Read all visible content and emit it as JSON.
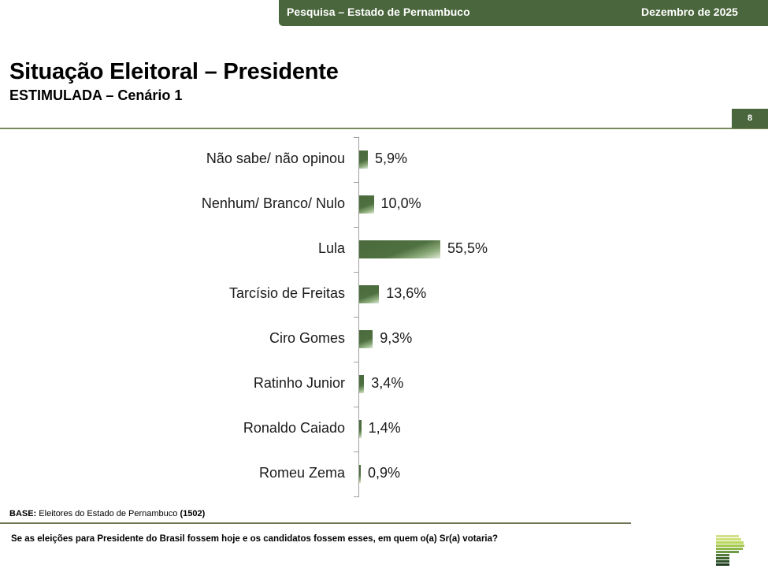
{
  "header": {
    "banner_left": "Pesquisa – Estado de Pernambuco",
    "banner_right": "Dezembro de 2025",
    "title": "Situação Eleitoral – Presidente",
    "subtitle": "ESTIMULADA – Cenário 1",
    "page_number": "8",
    "brand_color": "#4a663c"
  },
  "chart_data": {
    "type": "bar",
    "orientation": "horizontal",
    "title": "Situação Eleitoral – Presidente",
    "subtitle": "ESTIMULADA – Cenário 1",
    "categories": [
      "Não sabe/ não opinou",
      "Nenhum/ Branco/ Nulo",
      "Lula",
      "Tarcísio de Freitas",
      "Ciro Gomes",
      "Ratinho Junior",
      "Ronaldo Caiado",
      "Romeu Zema"
    ],
    "values": [
      5.9,
      10.0,
      55.5,
      13.6,
      9.3,
      3.4,
      1.4,
      0.9
    ],
    "value_labels": [
      "5,9%",
      "10,0%",
      "55,5%",
      "13,6%",
      "9,3%",
      "3,4%",
      "1,4%",
      "0,9%"
    ],
    "xlabel": "",
    "ylabel": "",
    "xlim": [
      0,
      100
    ],
    "grid": false,
    "legend": "none",
    "bar_color": "#4a6a3d"
  },
  "footer": {
    "base_label": "BASE:",
    "base_text": " Eleitores do Estado de Pernambuco ",
    "base_count": "(1502)",
    "question": "Se as eleições para Presidente do Brasil fossem hoje e os candidatos fossem esses, em quem o(a) Sr(a) votaria?"
  },
  "logo": {
    "icon": "stacked-bars-p-logo",
    "stripe_colors": [
      "#d4e08a",
      "#cde07a",
      "#b9d65c",
      "#a6c84e",
      "#8fb649",
      "#6f9a48",
      "#527a3c",
      "#3e6530",
      "#2c4f27",
      "#1d3a1c"
    ]
  }
}
